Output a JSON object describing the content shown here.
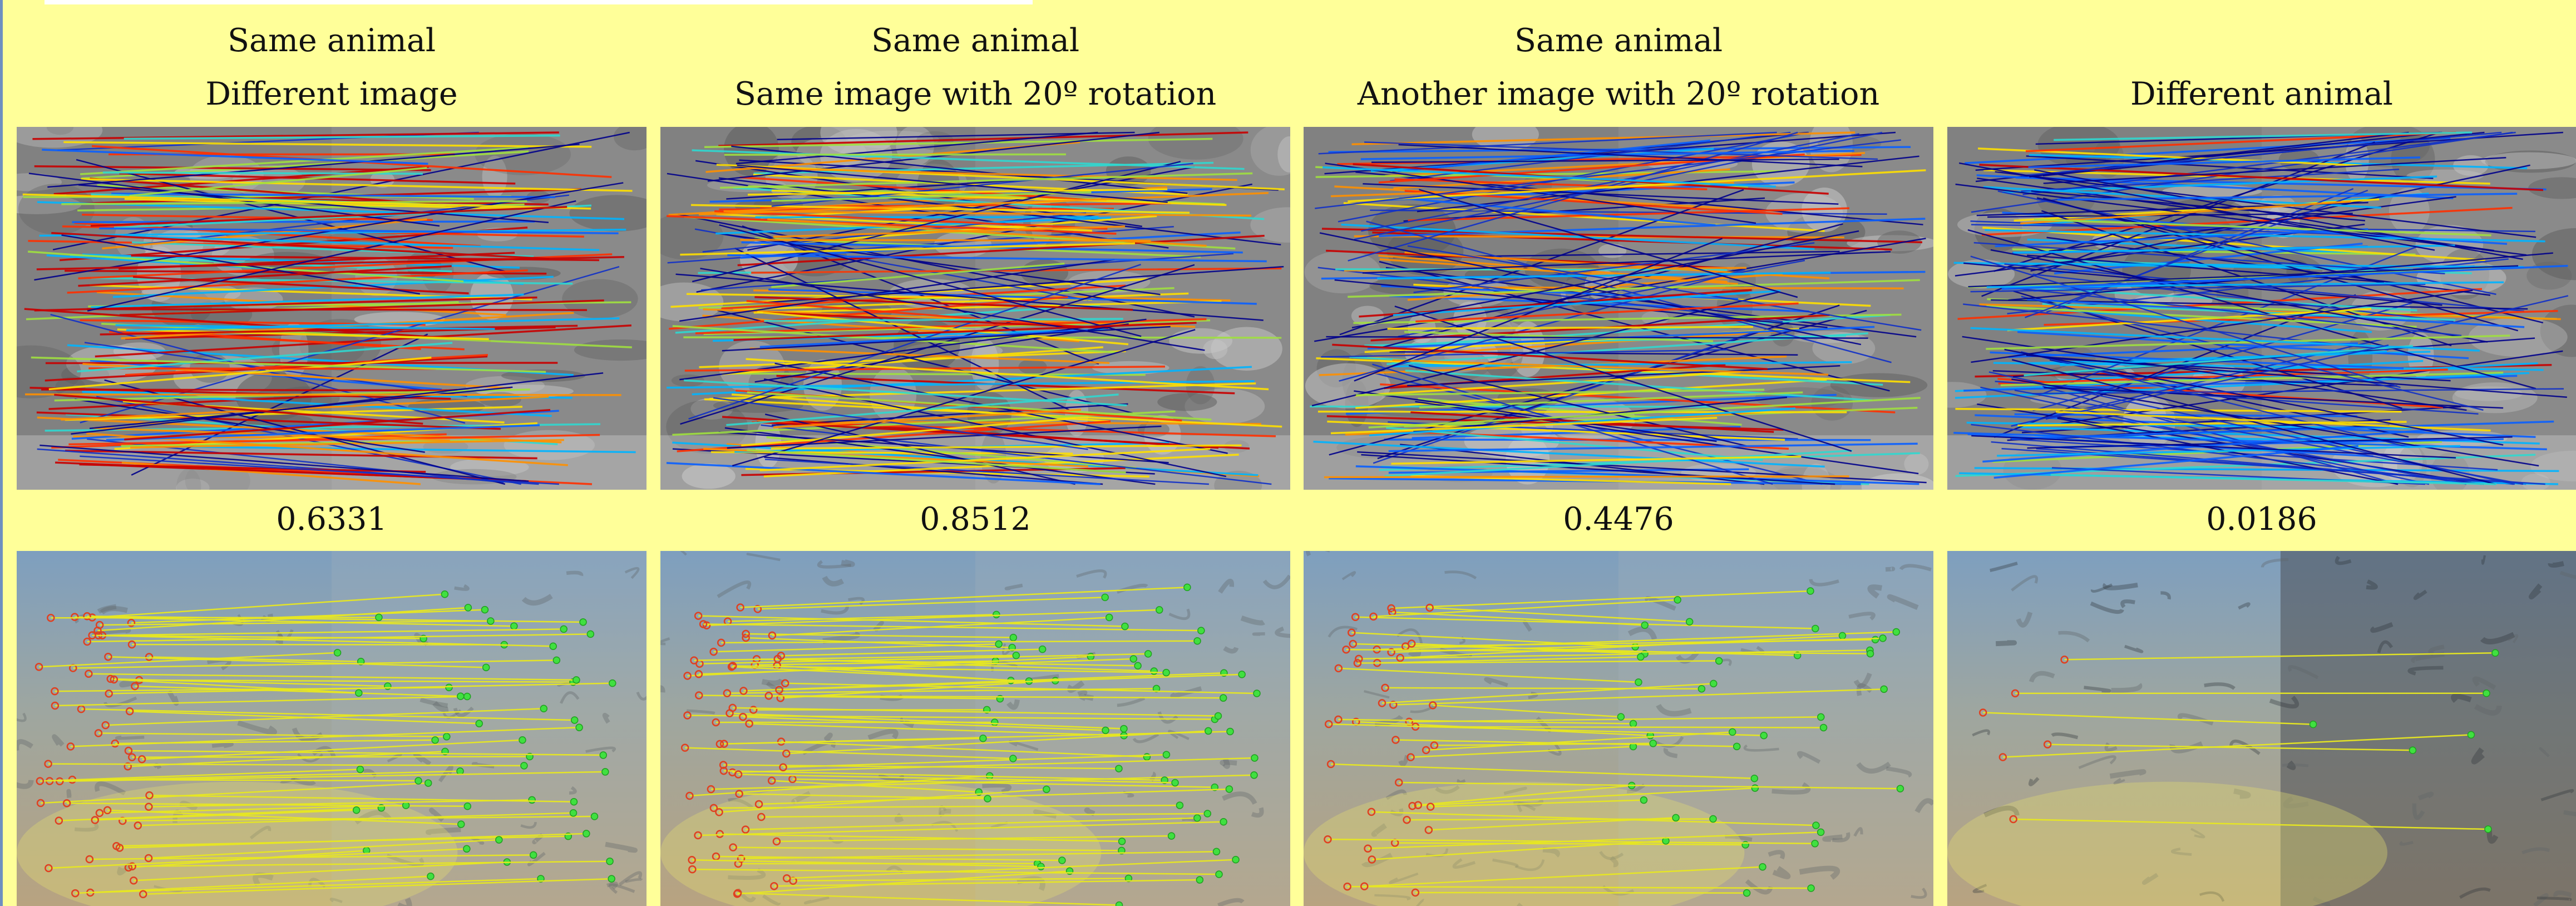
{
  "columns": [
    {
      "line1": "Same animal",
      "line2": "Different image",
      "score": "0.6331"
    },
    {
      "line1": "Same animal",
      "line2": "Same image with 20º rotation",
      "score": "0.8512"
    },
    {
      "line1": "Same animal",
      "line2": "Another image with 20º rotation",
      "score": "0.4476"
    },
    {
      "line1": "",
      "line2": "Different animal",
      "score": "0.0186"
    }
  ]
}
